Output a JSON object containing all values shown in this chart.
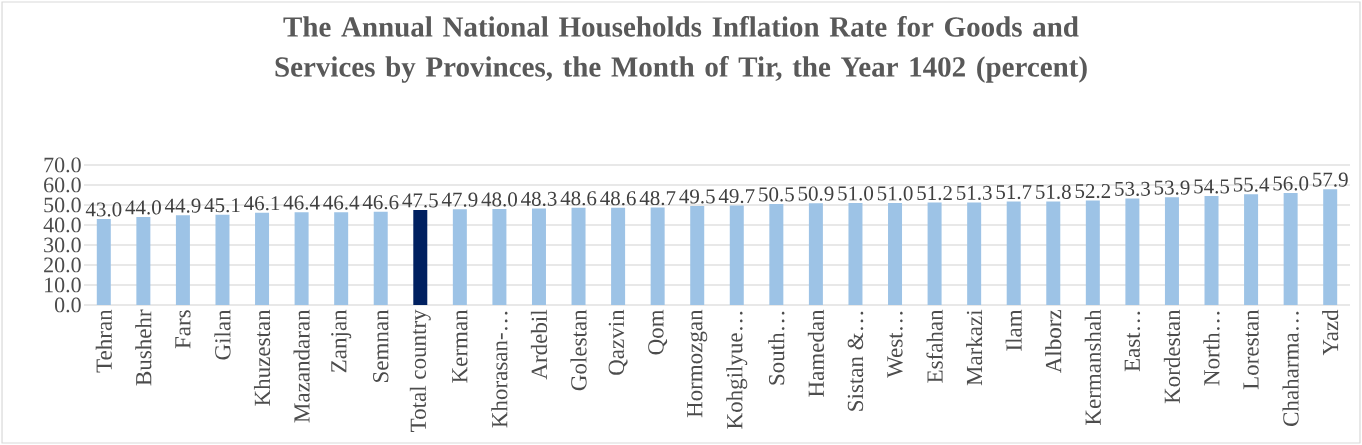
{
  "chart_data": {
    "type": "bar",
    "title": "The Annual National Households Inflation Rate for Goods and Services by Provinces,  the Month of Tir, the Year 1402 (percent)",
    "categories": [
      "Tehran",
      "Bushehr",
      "Fars",
      "Gilan",
      "Khuzestan",
      "Mazandaran",
      "Zanjan",
      "Semnan",
      "Total country",
      "Kerman",
      "Khorasan-…",
      "Ardebil",
      "Golestan",
      "Qazvin",
      "Qom",
      "Hormozgan",
      "Kohgilyue…",
      "South…",
      "Hamedan",
      "Sistan &…",
      "West…",
      "Esfahan",
      "Markazi",
      "Ilam",
      "Alborz",
      "Kermanshah",
      "East…",
      "Kordestan",
      "North…",
      "Lorestan",
      "Chaharma…",
      "Yazd"
    ],
    "values": [
      43.0,
      44.0,
      44.9,
      45.1,
      46.1,
      46.4,
      46.4,
      46.6,
      47.5,
      47.9,
      48.0,
      48.3,
      48.6,
      48.6,
      48.7,
      49.5,
      49.7,
      50.5,
      50.9,
      51.0,
      51.0,
      51.2,
      51.3,
      51.7,
      51.8,
      52.2,
      53.3,
      53.9,
      54.5,
      55.4,
      56.0,
      57.9
    ],
    "value_labels": [
      "43.0",
      "44.0",
      "44.9",
      "45.1",
      "46.1",
      "46.4",
      "46.4",
      "46.6",
      "47.5",
      "47.9",
      "48.0",
      "48.3",
      "48.6",
      "48.6",
      "48.7",
      "49.5",
      "49.7",
      "50.5",
      "50.9",
      "51.0",
      "51.0",
      "51.2",
      "51.3",
      "51.7",
      "51.8",
      "52.2",
      "53.3",
      "53.9",
      "54.5",
      "55.4",
      "56.0",
      "57.9"
    ],
    "colors": [
      "#9dc3e6",
      "#9dc3e6",
      "#9dc3e6",
      "#9dc3e6",
      "#9dc3e6",
      "#9dc3e6",
      "#9dc3e6",
      "#9dc3e6",
      "#002060",
      "#9dc3e6",
      "#9dc3e6",
      "#9dc3e6",
      "#9dc3e6",
      "#9dc3e6",
      "#9dc3e6",
      "#9dc3e6",
      "#9dc3e6",
      "#9dc3e6",
      "#9dc3e6",
      "#9dc3e6",
      "#9dc3e6",
      "#9dc3e6",
      "#9dc3e6",
      "#9dc3e6",
      "#9dc3e6",
      "#9dc3e6",
      "#9dc3e6",
      "#9dc3e6",
      "#9dc3e6",
      "#9dc3e6",
      "#9dc3e6",
      "#9dc3e6"
    ],
    "ylim": [
      0,
      70
    ],
    "yticks": [
      {
        "value": 0,
        "label": "0.0"
      },
      {
        "value": 10,
        "label": "10.0"
      },
      {
        "value": 20,
        "label": "20.0"
      },
      {
        "value": 30,
        "label": "30.0"
      },
      {
        "value": 40,
        "label": "40.0"
      },
      {
        "value": 50,
        "label": "50.0"
      },
      {
        "value": 60,
        "label": "60.0"
      },
      {
        "value": 70,
        "label": "70.0"
      }
    ],
    "grid": "y"
  }
}
